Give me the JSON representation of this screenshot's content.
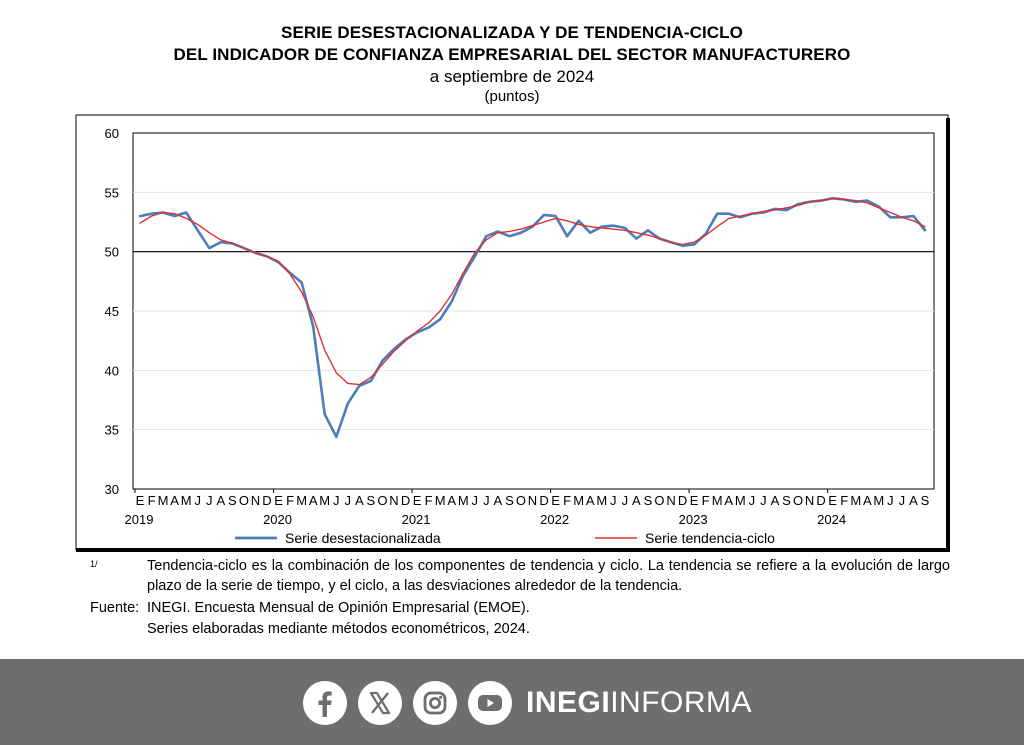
{
  "title_line1": "SERIE DESESTACIONALIZADA Y DE TENDENCIA-CICLO",
  "title_line2": "DEL INDICADOR DE CONFIANZA EMPRESARIAL DEL SECTOR MANUFACTURERO",
  "subtitle": "a septiembre de 2024",
  "units": "(puntos)",
  "chart_data": {
    "type": "line",
    "y_ticks": [
      "60",
      "55",
      "50",
      "45",
      "40",
      "35",
      "30"
    ],
    "ylim": [
      30,
      60
    ],
    "reference_line": 50,
    "grid": true,
    "legend_position": "bottom",
    "month_labels": [
      "E",
      "F",
      "M",
      "A",
      "M",
      "J",
      "J",
      "A",
      "S",
      "O",
      "N",
      "D"
    ],
    "year_labels": [
      "2019",
      "2020",
      "2021",
      "2022",
      "2023",
      "2024"
    ],
    "x": [
      "2019-01",
      "2019-02",
      "2019-03",
      "2019-04",
      "2019-05",
      "2019-06",
      "2019-07",
      "2019-08",
      "2019-09",
      "2019-10",
      "2019-11",
      "2019-12",
      "2020-01",
      "2020-02",
      "2020-03",
      "2020-04",
      "2020-05",
      "2020-06",
      "2020-07",
      "2020-08",
      "2020-09",
      "2020-10",
      "2020-11",
      "2020-12",
      "2021-01",
      "2021-02",
      "2021-03",
      "2021-04",
      "2021-05",
      "2021-06",
      "2021-07",
      "2021-08",
      "2021-09",
      "2021-10",
      "2021-11",
      "2021-12",
      "2022-01",
      "2022-02",
      "2022-03",
      "2022-04",
      "2022-05",
      "2022-06",
      "2022-07",
      "2022-08",
      "2022-09",
      "2022-10",
      "2022-11",
      "2022-12",
      "2023-01",
      "2023-02",
      "2023-03",
      "2023-04",
      "2023-05",
      "2023-06",
      "2023-07",
      "2023-08",
      "2023-09",
      "2023-10",
      "2023-11",
      "2023-12",
      "2024-01",
      "2024-02",
      "2024-03",
      "2024-04",
      "2024-05",
      "2024-06",
      "2024-07",
      "2024-08",
      "2024-09"
    ],
    "series": [
      {
        "name": "Serie desestacionalizada",
        "color": "#4a7ebb",
        "values": [
          53.0,
          53.2,
          53.3,
          53.0,
          53.3,
          51.8,
          50.3,
          50.8,
          50.7,
          50.3,
          49.9,
          49.6,
          49.1,
          48.2,
          47.4,
          43.7,
          36.3,
          34.4,
          37.2,
          38.7,
          39.1,
          40.8,
          41.8,
          42.6,
          43.2,
          43.6,
          44.3,
          45.8,
          48.0,
          49.6,
          51.3,
          51.7,
          51.3,
          51.6,
          52.1,
          53.1,
          53.0,
          51.3,
          52.6,
          51.6,
          52.1,
          52.2,
          52.0,
          51.1,
          51.8,
          51.1,
          50.8,
          50.5,
          50.6,
          51.5,
          53.2,
          53.2,
          52.9,
          53.2,
          53.3,
          53.6,
          53.5,
          54.0,
          54.2,
          54.3,
          54.5,
          54.4,
          54.2,
          54.3,
          53.8,
          52.9,
          52.9,
          53.0,
          51.8
        ]
      },
      {
        "name": "Serie tendencia-ciclo",
        "color": "#e03030",
        "values": [
          52.4,
          53.0,
          53.3,
          53.2,
          52.8,
          52.3,
          51.6,
          51.0,
          50.7,
          50.3,
          49.9,
          49.6,
          49.2,
          48.1,
          46.6,
          44.5,
          41.7,
          39.8,
          38.9,
          38.8,
          39.4,
          40.5,
          41.6,
          42.5,
          43.3,
          44.0,
          45.0,
          46.4,
          48.2,
          49.9,
          51.0,
          51.6,
          51.7,
          51.9,
          52.2,
          52.5,
          52.8,
          52.6,
          52.3,
          52.1,
          52.0,
          51.9,
          51.8,
          51.6,
          51.4,
          51.1,
          50.8,
          50.6,
          50.8,
          51.4,
          52.1,
          52.8,
          53.0,
          53.2,
          53.4,
          53.5,
          53.7,
          53.9,
          54.2,
          54.3,
          54.5,
          54.4,
          54.3,
          54.1,
          53.7,
          53.3,
          52.9,
          52.6,
          52.1
        ]
      }
    ]
  },
  "footnote_mark": "1/",
  "footnote_text": "Tendencia-ciclo es la combinación de los componentes de tendencia y ciclo. La tendencia se refiere a la evolución de largo plazo de la serie de tiempo, y el ciclo, a las desviaciones alrededor de la tendencia.",
  "source_label": "Fuente:",
  "source_text": "INEGI. Encuesta Mensual de Opinión Empresarial (EMOE).",
  "source_text2": "Series elaboradas mediante métodos econométricos, 2024.",
  "footer": {
    "brand_bold": "INEGI",
    "brand_thin": "INFORMA",
    "icons": [
      "facebook-icon",
      "x-icon",
      "instagram-icon",
      "youtube-icon"
    ],
    "background": "#6e6e6e"
  }
}
